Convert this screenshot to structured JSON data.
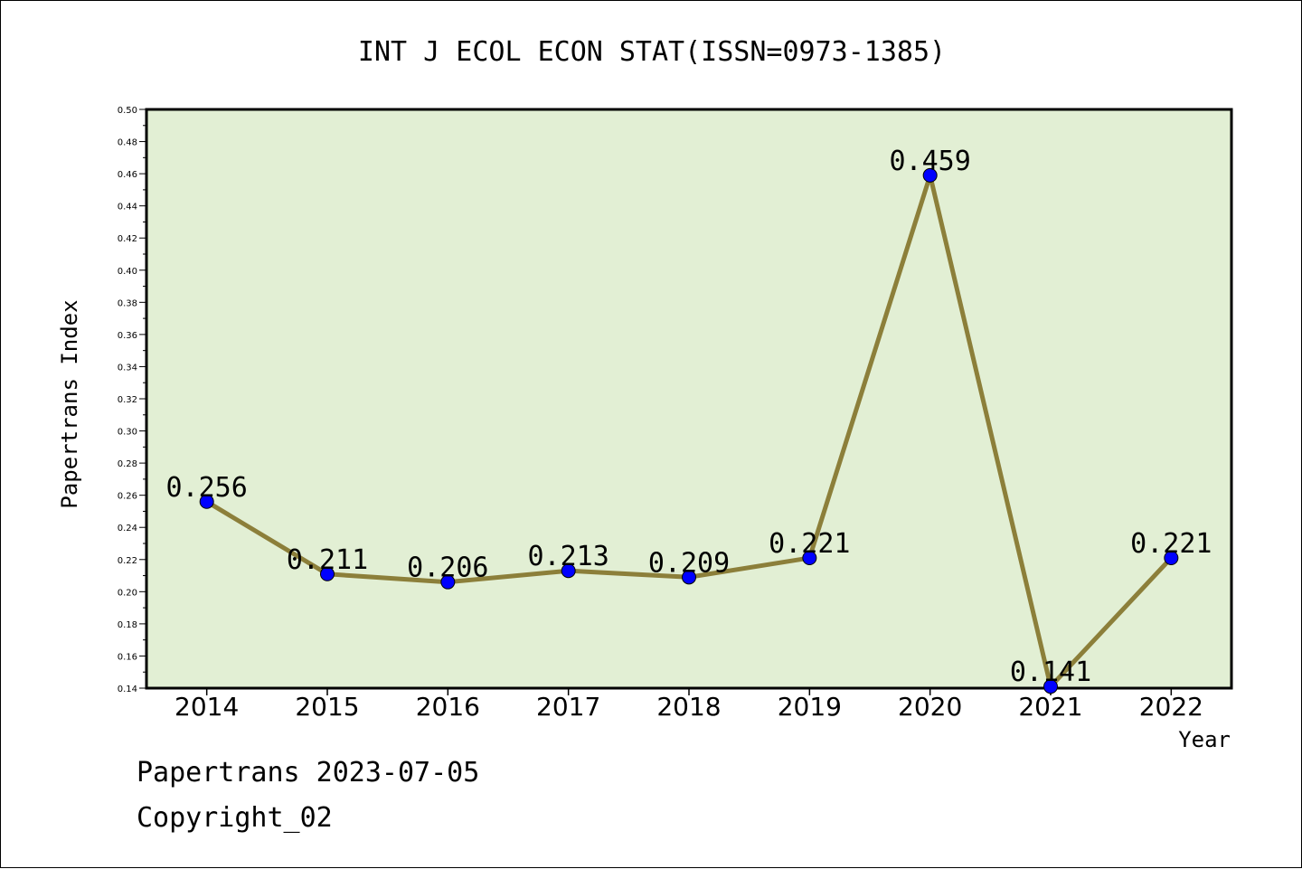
{
  "chart_data": {
    "type": "line",
    "title": "INT J ECOL ECON STAT(ISSN=0973-1385)",
    "xlabel": "Year",
    "ylabel": "Papertrans Index",
    "categories": [
      "2014",
      "2015",
      "2016",
      "2017",
      "2018",
      "2019",
      "2020",
      "2021",
      "2022"
    ],
    "series": [
      {
        "values": [
          0.256,
          0.211,
          0.206,
          0.213,
          0.209,
          0.221,
          0.459,
          0.141,
          0.221
        ]
      }
    ],
    "data_labels": [
      "0.256",
      "0.211",
      "0.206",
      "0.213",
      "0.209",
      "0.221",
      "0.459",
      "0.141",
      "0.221"
    ],
    "ylim": [
      0.14,
      0.5
    ],
    "yticks": [
      "0.14",
      "0.16",
      "0.18",
      "0.20",
      "0.22",
      "0.24",
      "0.26",
      "0.28",
      "0.30",
      "0.32",
      "0.34",
      "0.36",
      "0.38",
      "0.40",
      "0.42",
      "0.44",
      "0.46",
      "0.48",
      "0.50"
    ],
    "grid": false,
    "colors": {
      "plot_background": "#e2efd4",
      "line": "#8c7f3a",
      "marker": "#0000ff"
    }
  },
  "footer": {
    "line1": "Papertrans 2023-07-05",
    "line2": "Copyright_02"
  }
}
